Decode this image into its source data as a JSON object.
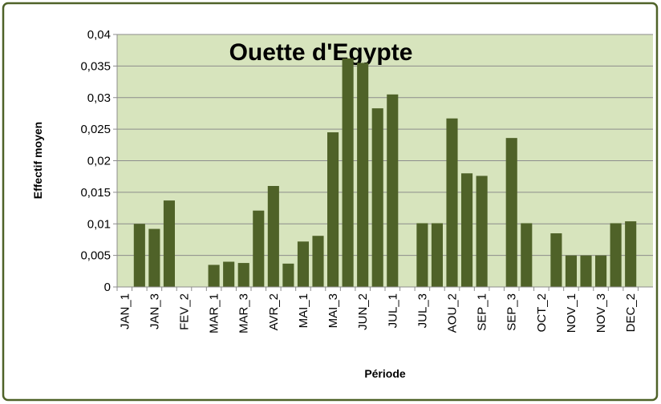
{
  "chart_data": {
    "type": "bar",
    "title": "Ouette d'Egypte",
    "x_label": "Période",
    "y_label": "Effectif moyen",
    "categories": [
      "JAN_1",
      null,
      "JAN_3",
      null,
      "FEV_2",
      null,
      "MAR_1",
      null,
      "MAR_3",
      null,
      "AVR_2",
      null,
      "MAI_1",
      null,
      "MAI_3",
      null,
      "JUN_2",
      null,
      "JUL_1",
      null,
      "JUL_3",
      null,
      "AOU_2",
      null,
      "SEP_1",
      null,
      "SEP_3",
      null,
      "OCT_2",
      null,
      "NOV_1",
      null,
      "NOV_3",
      null,
      "DEC_2",
      null
    ],
    "values": [
      0,
      0.01,
      0.0092,
      0.0137,
      0,
      0,
      0.0035,
      0.004,
      0.0038,
      0.0121,
      0.016,
      0.0037,
      0.0072,
      0.0081,
      0.0245,
      0.0362,
      0.0355,
      0.0283,
      0.0305,
      0,
      0.0101,
      0.0101,
      0.0267,
      0.018,
      0.0176,
      0,
      0.0236,
      0.0101,
      0,
      0.0085,
      0.005,
      0.005,
      0.005,
      0.0101,
      0.0104,
      0
    ],
    "color": "#4f6228",
    "ylim": [
      0,
      0.04
    ],
    "yticks": [
      0,
      {
        "value": 0.005,
        "label": "0,005"
      },
      {
        "value": 0.01,
        "label": "0,01"
      },
      {
        "value": 0.015,
        "label": "0,015"
      },
      {
        "value": 0.02,
        "label": "0,02"
      },
      {
        "value": 0.025,
        "label": "0,025"
      },
      {
        "value": 0.03,
        "label": "0,03"
      },
      {
        "value": 0.035,
        "label": "0,035"
      },
      {
        "value": 0.04,
        "label": "0,04"
      }
    ],
    "grid": true
  }
}
